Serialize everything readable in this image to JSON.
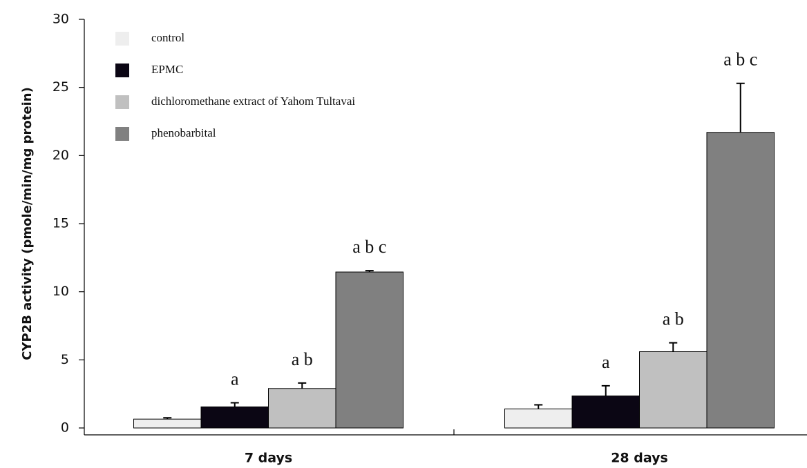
{
  "chart_data": {
    "type": "bar",
    "y_label": "CYP2B  activity (pmole/min/mg protein)",
    "categories": [
      "7 days",
      "28 days"
    ],
    "series": [
      {
        "name": "control",
        "color": "#eeeeee",
        "values": [
          0.65,
          1.4
        ],
        "errors": [
          0.1,
          0.3
        ],
        "annotations": [
          null,
          null
        ]
      },
      {
        "name": "EPMC",
        "color": "#0b0614",
        "values": [
          1.55,
          2.35
        ],
        "errors": [
          0.3,
          0.75
        ],
        "annotations": [
          "a",
          "a"
        ]
      },
      {
        "name": "dichloromethane extract of Yahom Tultavai",
        "color": "#c0c0c0",
        "values": [
          2.9,
          5.6
        ],
        "errors": [
          0.4,
          0.65
        ],
        "annotations": [
          "a b",
          "a b"
        ]
      },
      {
        "name": "phenobarbital",
        "color": "#808080",
        "values": [
          11.45,
          21.7
        ],
        "errors": [
          0.1,
          3.6
        ],
        "annotations": [
          "a b c",
          "a b c"
        ]
      }
    ],
    "ylim": [
      0,
      30
    ],
    "yticks": [
      0,
      5,
      10,
      15,
      20,
      25,
      30
    ],
    "legend": "upper-left"
  }
}
